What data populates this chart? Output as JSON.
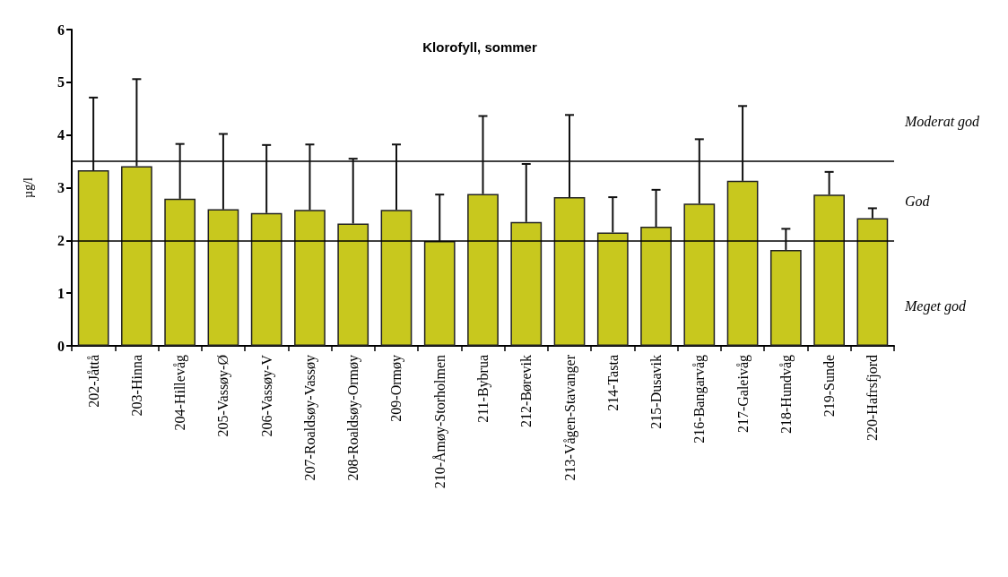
{
  "chart_data": {
    "type": "bar",
    "title": "Klorofyll, sommer",
    "ylabel": "µg/l",
    "categories": [
      "202-Jåttå",
      "203-Hinna",
      "204-Hillevåg",
      "205-Vassøy-Ø",
      "206-Vassøy-V",
      "207-Roaldsøy-Vassøy",
      "208-Roaldsøy-Ormøy",
      "209-Ormøy",
      "210-Åmøy-Storholmen",
      "211-Bybrua",
      "212-Børevik",
      "213-Vågen-Stavanger",
      "214-Tasta",
      "215-Dusavik",
      "216-Bangarvåg",
      "217-Galeivåg",
      "218-Hundvåg",
      "219-Sunde",
      "220-Hafrsfjord"
    ],
    "values": [
      3.33,
      3.41,
      2.79,
      2.59,
      2.52,
      2.58,
      2.32,
      2.58,
      1.99,
      2.88,
      2.35,
      2.82,
      2.15,
      2.26,
      2.7,
      3.13,
      1.82,
      2.87,
      2.42
    ],
    "errors": [
      [
        3.33,
        4.71
      ],
      [
        3.41,
        5.06
      ],
      [
        2.79,
        3.83
      ],
      [
        2.59,
        4.02
      ],
      [
        2.52,
        3.81
      ],
      [
        2.58,
        3.82
      ],
      [
        2.32,
        3.55
      ],
      [
        2.58,
        3.82
      ],
      [
        1.99,
        2.87
      ],
      [
        2.88,
        4.36
      ],
      [
        2.35,
        3.45
      ],
      [
        2.82,
        4.38
      ],
      [
        2.15,
        2.82
      ],
      [
        2.26,
        2.96
      ],
      [
        2.7,
        3.92
      ],
      [
        3.13,
        4.55
      ],
      [
        1.82,
        2.22
      ],
      [
        2.87,
        3.3
      ],
      [
        2.42,
        2.61
      ]
    ],
    "color": "#c8c81e",
    "ylim": [
      0,
      6
    ],
    "yticks": [
      0,
      1,
      2,
      3,
      4,
      5,
      6
    ],
    "grid": false,
    "ref_lines": [
      {
        "axis": "y",
        "value": 3.5
      },
      {
        "axis": "y",
        "value": 2
      }
    ],
    "annotations": [
      "Moderat god",
      "God",
      "Meget god"
    ]
  }
}
